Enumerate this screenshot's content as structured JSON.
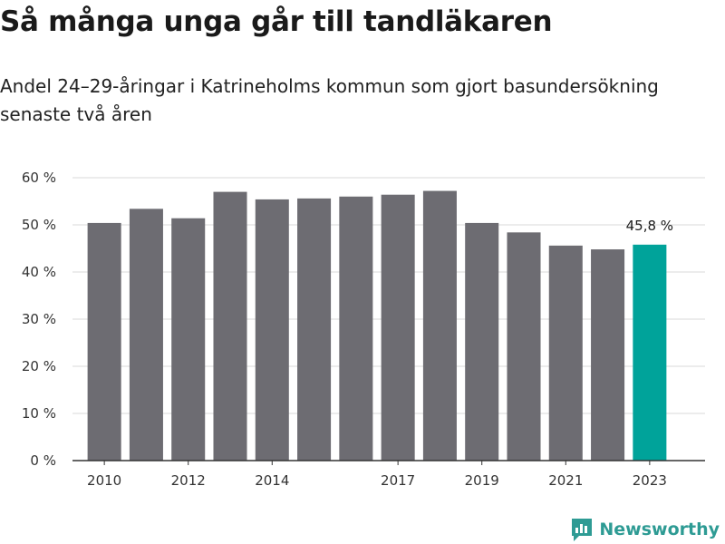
{
  "header": {
    "title": "Så många unga går till tandläkaren",
    "subtitle": "Andel 24–29-åringar i Katrineholms kommun som gjort basundersökning senaste två åren"
  },
  "brand": {
    "name": "Newsworthy",
    "color": "#2e9b94",
    "icon": "bar-chart-badge-icon"
  },
  "colors": {
    "bar": "#6d6c72",
    "highlight": "#00a39a",
    "grid": "#d9d9d9",
    "axis": "#333333"
  },
  "chart_data": {
    "type": "bar",
    "categories": [
      "2010",
      "2011",
      "2012",
      "2013",
      "2014",
      "2015",
      "2016",
      "2017",
      "2018",
      "2019",
      "2020",
      "2021",
      "2022",
      "2023"
    ],
    "x_tick_labels": [
      "2010",
      "2012",
      "2014",
      "2017",
      "2019",
      "2021",
      "2023"
    ],
    "values": [
      50.4,
      53.4,
      51.4,
      57.0,
      55.4,
      55.6,
      56.0,
      56.4,
      57.2,
      50.4,
      48.4,
      45.6,
      44.8,
      45.8
    ],
    "highlight_index": 13,
    "annotation": {
      "category": "2023",
      "text": "45,8 %"
    },
    "yticks": [
      0,
      10,
      20,
      30,
      40,
      50,
      60
    ],
    "ytick_labels": [
      "0 %",
      "10 %",
      "20 %",
      "30 %",
      "40 %",
      "50 %",
      "60 %"
    ],
    "ylim": [
      0,
      60
    ],
    "grid": true,
    "title": "Så många unga går till tandläkaren",
    "xlabel": "",
    "ylabel": ""
  }
}
